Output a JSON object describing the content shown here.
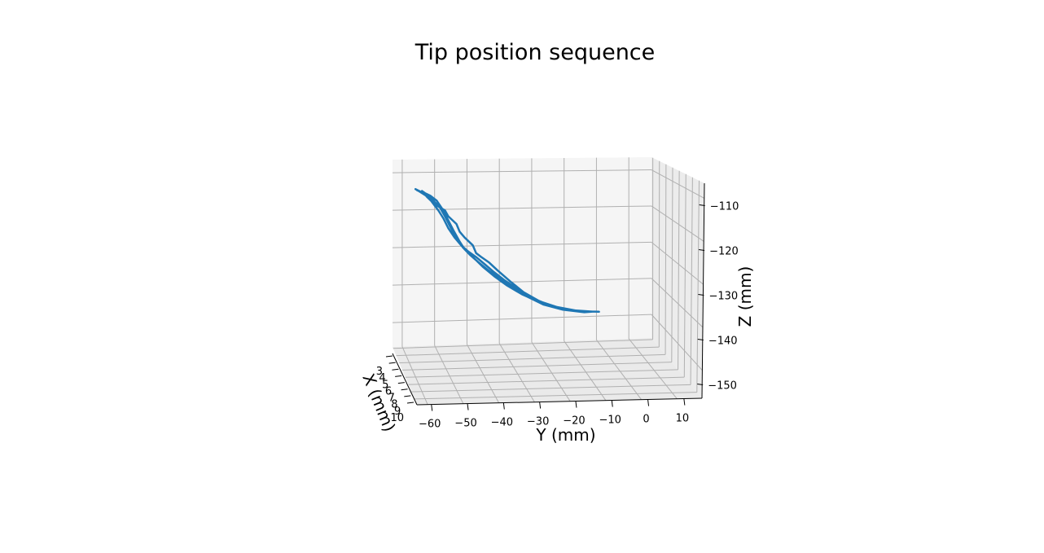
{
  "chart_data": {
    "type": "line",
    "projection": "3d",
    "title": "Tip position sequence",
    "xlabel": "X (mm)",
    "ylabel": "Y (mm)",
    "zlabel": "Z (mm)",
    "x_ticks": [
      "3",
      "4",
      "5",
      "6",
      "7",
      "8",
      "9",
      "10"
    ],
    "y_ticks": [
      "−60",
      "−50",
      "−40",
      "−30",
      "−20",
      "−10",
      "0",
      "10"
    ],
    "z_ticks": [
      "−110",
      "−120",
      "−130",
      "−140",
      "−150"
    ],
    "xlim": [
      3,
      10
    ],
    "ylim": [
      -64,
      15
    ],
    "zlim": [
      -153,
      -105
    ],
    "grid": true,
    "series": [
      {
        "color": "#1f77b4",
        "points_yz": [
          [
            -57.0,
            -112.5
          ],
          [
            -53.5,
            -114.0
          ],
          [
            -56.0,
            -113.0
          ],
          [
            -53.0,
            -114.6
          ],
          [
            -51.8,
            -116.0
          ],
          [
            -50.0,
            -118.0
          ],
          [
            -48.5,
            -120.0
          ],
          [
            -47.0,
            -122.5
          ],
          [
            -45.0,
            -125.0
          ],
          [
            -43.0,
            -127.0
          ],
          [
            -41.0,
            -128.5
          ],
          [
            -38.5,
            -130.0
          ],
          [
            -36.0,
            -131.8
          ],
          [
            -33.0,
            -134.0
          ],
          [
            -30.0,
            -136.0
          ],
          [
            -27.0,
            -137.8
          ],
          [
            -24.0,
            -139.5
          ],
          [
            -21.0,
            -141.0
          ],
          [
            -17.0,
            -142.5
          ],
          [
            -13.0,
            -143.6
          ],
          [
            -9.0,
            -144.3
          ],
          [
            -5.0,
            -144.7
          ],
          [
            -1.0,
            -144.9
          ],
          [
            -5.0,
            -144.7
          ],
          [
            -10.0,
            -144.2
          ],
          [
            -15.0,
            -143.1
          ],
          [
            -20.0,
            -141.6
          ],
          [
            -24.5,
            -139.8
          ],
          [
            -29.0,
            -137.5
          ],
          [
            -33.0,
            -135.0
          ],
          [
            -36.5,
            -132.5
          ],
          [
            -39.0,
            -130.4
          ],
          [
            -42.0,
            -128.0
          ],
          [
            -43.5,
            -126.0
          ],
          [
            -45.5,
            -123.0
          ],
          [
            -47.0,
            -120.5
          ],
          [
            -48.5,
            -118.0
          ],
          [
            -50.5,
            -115.5
          ],
          [
            -52.5,
            -114.2
          ],
          [
            -54.0,
            -113.6
          ],
          [
            -55.0,
            -113.0
          ],
          [
            -53.5,
            -114.5
          ],
          [
            -51.0,
            -116.5
          ],
          [
            -48.0,
            -118.0
          ],
          [
            -47.0,
            -119.5
          ],
          [
            -44.5,
            -121.5
          ],
          [
            -43.5,
            -123.5
          ],
          [
            -42.0,
            -125.0
          ],
          [
            -39.5,
            -127.0
          ],
          [
            -38.5,
            -129.0
          ],
          [
            -37.0,
            -130.0
          ],
          [
            -34.5,
            -131.5
          ],
          [
            -32.0,
            -133.5
          ],
          [
            -28.0,
            -136.5
          ],
          [
            -24.0,
            -139.3
          ],
          [
            -19.0,
            -141.8
          ],
          [
            -14.0,
            -143.3
          ],
          [
            -8.0,
            -144.4
          ],
          [
            -3.0,
            -144.8
          ],
          [
            -5.5,
            -144.9
          ],
          [
            -12.0,
            -144.1
          ],
          [
            -18.0,
            -142.6
          ],
          [
            -23.0,
            -140.4
          ],
          [
            -27.5,
            -138.0
          ],
          [
            -31.5,
            -135.6
          ],
          [
            -35.0,
            -133.3
          ],
          [
            -38.0,
            -131.2
          ],
          [
            -40.5,
            -129.3
          ],
          [
            -42.5,
            -127.5
          ],
          [
            -44.5,
            -125.0
          ],
          [
            -46.5,
            -122.0
          ],
          [
            -48.0,
            -119.5
          ],
          [
            -49.5,
            -117.3
          ],
          [
            -51.5,
            -115.5
          ],
          [
            -53.5,
            -114.0
          ],
          [
            -56.5,
            -112.8
          ]
        ]
      }
    ]
  }
}
